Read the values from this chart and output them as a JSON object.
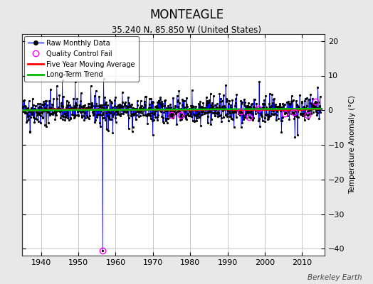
{
  "title": "MONTEAGLE",
  "subtitle": "35.240 N, 85.850 W (United States)",
  "ylabel": "Temperature Anomaly (°C)",
  "watermark": "Berkeley Earth",
  "xlim": [
    1935,
    2016
  ],
  "ylim": [
    -42,
    22
  ],
  "yticks": [
    -40,
    -30,
    -20,
    -10,
    0,
    10,
    20
  ],
  "xticks": [
    1940,
    1950,
    1960,
    1970,
    1980,
    1990,
    2000,
    2010
  ],
  "bg_color": "#e8e8e8",
  "plot_bg_color": "#ffffff",
  "grid_color": "#c8c8c8",
  "raw_line_color": "#0000ff",
  "raw_dot_color": "#000000",
  "moving_avg_color": "#ff0000",
  "trend_color": "#00bb00",
  "qc_fail_color": "#ff00ff",
  "spike_year": 1956.5,
  "spike_value": -40.5,
  "seed": 42,
  "n_points": 912,
  "start_year": 1935.0,
  "end_year": 2015.0,
  "qc_extra_years": [
    1975.0,
    1977.5,
    1993.5,
    1995.8,
    1998.2,
    2005.3,
    2007.8,
    2011.5,
    2013.5
  ]
}
